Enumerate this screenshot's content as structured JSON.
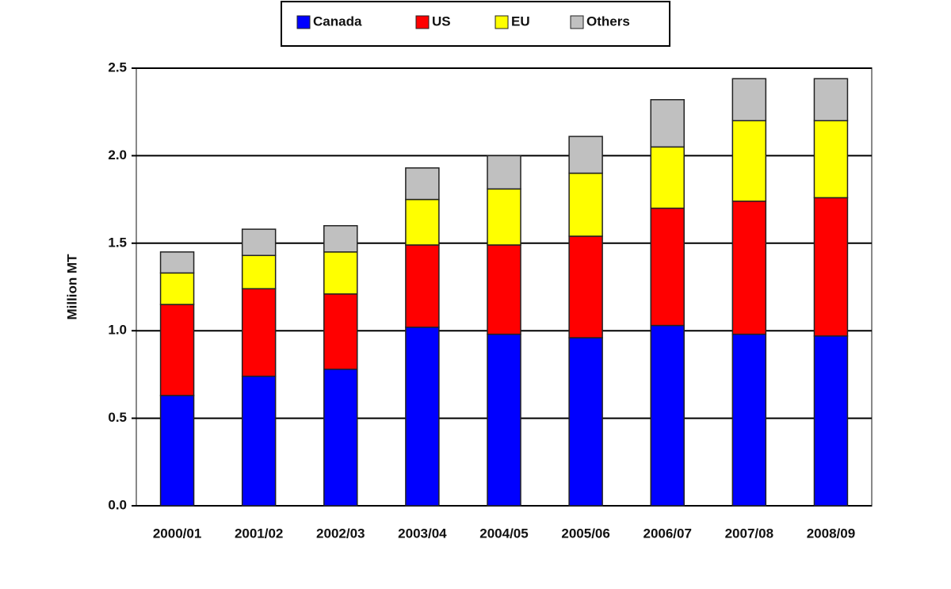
{
  "chart_data": {
    "type": "stacked-bar",
    "y_label": "Million MT",
    "categories": [
      "2000/01",
      "2001/02",
      "2002/03",
      "2003/04",
      "2004/05",
      "2005/06",
      "2006/07",
      "2007/08",
      "2008/09"
    ],
    "series": [
      {
        "name": "Canada",
        "color": "#0000ff",
        "values": [
          0.63,
          0.74,
          0.78,
          1.02,
          0.98,
          0.96,
          1.03,
          0.98,
          0.97
        ]
      },
      {
        "name": "US",
        "color": "#ff0000",
        "values": [
          0.52,
          0.5,
          0.43,
          0.47,
          0.51,
          0.58,
          0.67,
          0.76,
          0.79
        ]
      },
      {
        "name": "EU",
        "color": "#ffff00",
        "values": [
          0.18,
          0.19,
          0.24,
          0.26,
          0.32,
          0.36,
          0.35,
          0.46,
          0.44
        ]
      },
      {
        "name": "Others",
        "color": "#c0c0c0",
        "values": [
          0.12,
          0.15,
          0.15,
          0.18,
          0.19,
          0.21,
          0.27,
          0.24,
          0.24
        ]
      }
    ],
    "ylim": [
      0,
      2.5
    ],
    "yticks": [
      {
        "value": 0,
        "label": "0.0"
      },
      {
        "value": 0.5,
        "label": "0.5"
      },
      {
        "value": 1,
        "label": "1.0"
      },
      {
        "value": 1.5,
        "label": "1.5"
      },
      {
        "value": 2,
        "label": "2.0"
      },
      {
        "value": 2.5,
        "label": "2.5"
      }
    ],
    "grid": true,
    "legend": "top"
  }
}
